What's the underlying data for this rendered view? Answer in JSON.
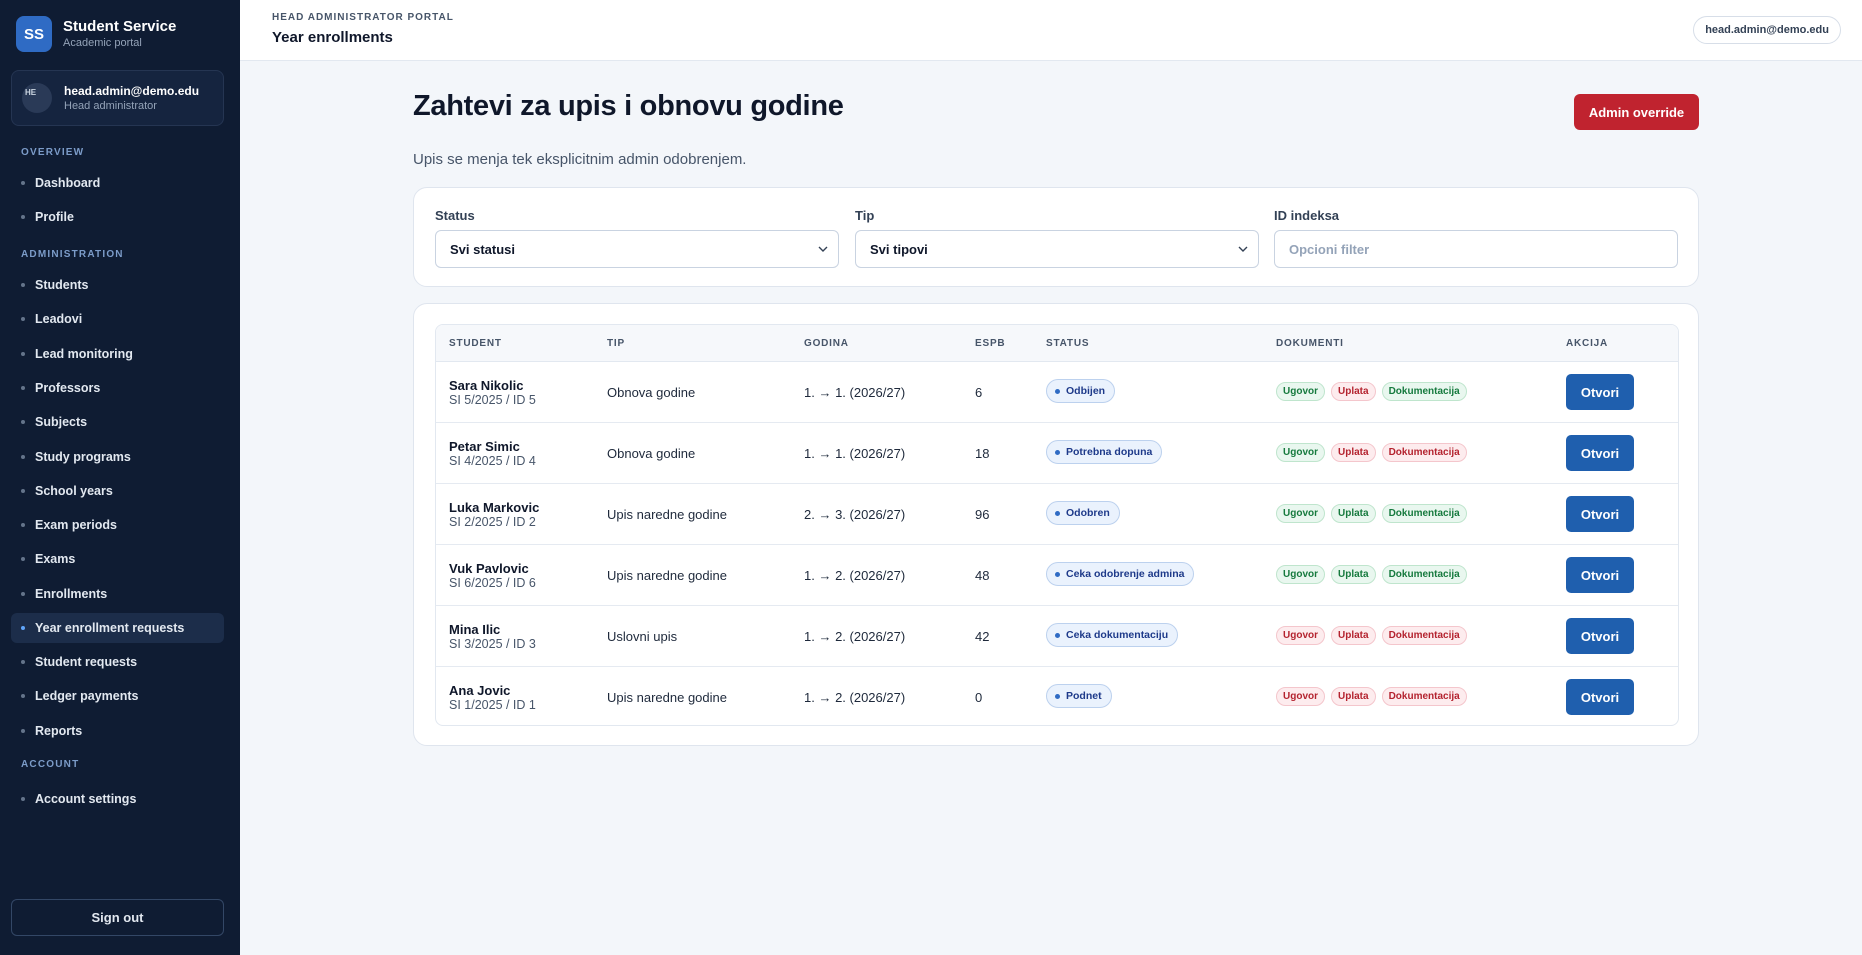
{
  "brand": {
    "logo": "SS",
    "title": "Student Service",
    "subtitle": "Academic portal"
  },
  "user": {
    "avatar": "HE",
    "email": "head.admin@demo.edu",
    "role": "Head administrator"
  },
  "nav": {
    "sections": [
      {
        "title": "OVERVIEW",
        "items": [
          "Dashboard",
          "Profile"
        ]
      },
      {
        "title": "ADMINISTRATION",
        "items": [
          "Students",
          "Leadovi",
          "Lead monitoring",
          "Professors",
          "Subjects",
          "Study programs",
          "School years",
          "Exam periods",
          "Exams",
          "Enrollments",
          "Year enrollment requests",
          "Student requests",
          "Ledger payments",
          "Reports"
        ]
      },
      {
        "title": "ACCOUNT",
        "items": [
          "Account settings"
        ]
      }
    ],
    "active": "Year enrollment requests",
    "signout": "Sign out"
  },
  "topbar": {
    "portal": "HEAD ADMINISTRATOR PORTAL",
    "page": "Year enrollments",
    "email": "head.admin@demo.edu"
  },
  "main": {
    "title": "Zahtevi za upis i obnovu godine",
    "subtitle": "Upis se menja tek eksplicitnim admin odobrenjem.",
    "override_button": "Admin override"
  },
  "filters": {
    "status": {
      "label": "Status",
      "value": "Svi statusi"
    },
    "tip": {
      "label": "Tip",
      "value": "Svi tipovi"
    },
    "id": {
      "label": "ID indeksa",
      "placeholder": "Opcioni filter"
    }
  },
  "table": {
    "headers": [
      "STUDENT",
      "TIP",
      "GODINA",
      "ESPB",
      "STATUS",
      "DOKUMENTI",
      "AKCIJA"
    ],
    "doc_labels": [
      "Ugovor",
      "Uplata",
      "Dokumentacija"
    ],
    "action_label": "Otvori",
    "status_color": "#2f6bc4",
    "doc_ok_color": "#167a3e",
    "doc_missing_color": "#b4232f",
    "rows": [
      {
        "name": "Sara Nikolic",
        "id": "SI 5/2025 / ID 5",
        "tip": "Obnova godine",
        "godina": "1. → 1. (2026/27)",
        "espb": "6",
        "status": "Odbijen",
        "docs": [
          true,
          false,
          true
        ]
      },
      {
        "name": "Petar Simic",
        "id": "SI 4/2025 / ID 4",
        "tip": "Obnova godine",
        "godina": "1. → 1. (2026/27)",
        "espb": "18",
        "status": "Potrebna dopuna",
        "docs": [
          true,
          false,
          false
        ]
      },
      {
        "name": "Luka Markovic",
        "id": "SI 2/2025 / ID 2",
        "tip": "Upis naredne godine",
        "godina": "2. → 3. (2026/27)",
        "espb": "96",
        "status": "Odobren",
        "docs": [
          true,
          true,
          true
        ]
      },
      {
        "name": "Vuk Pavlovic",
        "id": "SI 6/2025 / ID 6",
        "tip": "Upis naredne godine",
        "godina": "1. → 2. (2026/27)",
        "espb": "48",
        "status": "Ceka odobrenje admina",
        "docs": [
          true,
          true,
          true
        ]
      },
      {
        "name": "Mina Ilic",
        "id": "SI 3/2025 / ID 3",
        "tip": "Uslovni upis",
        "godina": "1. → 2. (2026/27)",
        "espb": "42",
        "status": "Ceka dokumentaciju",
        "docs": [
          false,
          false,
          false
        ]
      },
      {
        "name": "Ana Jovic",
        "id": "SI 1/2025 / ID 1",
        "tip": "Upis naredne godine",
        "godina": "1. → 2. (2026/27)",
        "espb": "0",
        "status": "Podnet",
        "docs": [
          false,
          false,
          false
        ]
      }
    ]
  }
}
